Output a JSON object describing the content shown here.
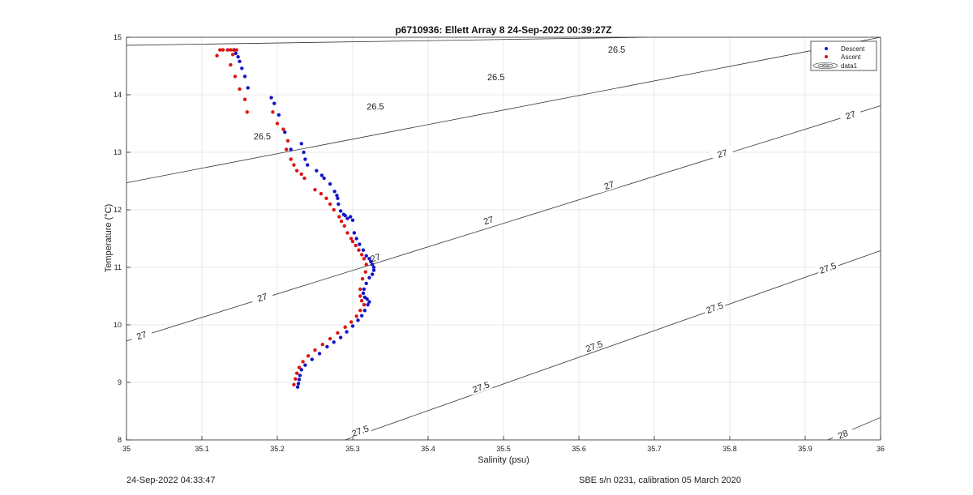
{
  "chart_data": {
    "type": "scatter",
    "title": "p6710936: Ellett Array 8 24-Sep-2022 00:39:27Z",
    "xlabel": "Salinity (psu)",
    "ylabel": "Temperature (°C)",
    "xlim": [
      35,
      36
    ],
    "ylim": [
      8,
      15
    ],
    "xticks": [
      "35",
      "35.1",
      "35.2",
      "35.3",
      "35.4",
      "35.5",
      "35.6",
      "35.7",
      "35.8",
      "35.9",
      "36"
    ],
    "yticks": [
      "8",
      "9",
      "10",
      "11",
      "12",
      "13",
      "14",
      "15"
    ],
    "grid": true,
    "legend_position": "top-right",
    "legend": [
      "Descent",
      "Ascent",
      "data1"
    ],
    "colors": {
      "descent": "#1414c8",
      "ascent": "#dc1414",
      "contour": "#333333",
      "grid": "#e3e3e3"
    },
    "contours": [
      {
        "label": "26.5",
        "points": [
          [
            35.0,
            14.86
          ],
          [
            35.69,
            15.0
          ]
        ]
      },
      {
        "label": "26.5",
        "points": [
          [
            35.0,
            12.47
          ],
          [
            36.0,
            15.0
          ]
        ]
      },
      {
        "label": "27",
        "points": [
          [
            35.0,
            9.72
          ],
          [
            36.0,
            13.81
          ]
        ]
      },
      {
        "label": "27.5",
        "points": [
          [
            35.29,
            8.0
          ],
          [
            36.0,
            11.29
          ]
        ]
      },
      {
        "label": "28",
        "points": [
          [
            35.93,
            8.0
          ],
          [
            36.0,
            8.39
          ]
        ]
      }
    ],
    "contour_labels": [
      {
        "text": "26.5",
        "x": 35.65,
        "y": 14.79
      },
      {
        "text": "26.5",
        "x": 35.49,
        "y": 14.31
      },
      {
        "text": "26.5",
        "x": 35.33,
        "y": 13.8
      },
      {
        "text": "26.5",
        "x": 35.18,
        "y": 13.28
      },
      {
        "text": "27",
        "x": 35.96,
        "y": 13.65
      },
      {
        "text": "27",
        "x": 35.79,
        "y": 12.98
      },
      {
        "text": "27",
        "x": 35.64,
        "y": 12.43
      },
      {
        "text": "27",
        "x": 35.48,
        "y": 11.82
      },
      {
        "text": "27",
        "x": 35.33,
        "y": 11.17
      },
      {
        "text": "27",
        "x": 35.18,
        "y": 10.48
      },
      {
        "text": "27",
        "x": 35.02,
        "y": 9.82
      },
      {
        "text": "27.5",
        "x": 35.93,
        "y": 10.99
      },
      {
        "text": "27.5",
        "x": 35.78,
        "y": 10.3
      },
      {
        "text": "27.5",
        "x": 35.62,
        "y": 9.63
      },
      {
        "text": "27.5",
        "x": 35.47,
        "y": 8.92
      },
      {
        "text": "27.5",
        "x": 35.31,
        "y": 8.16
      },
      {
        "text": "28",
        "x": 35.95,
        "y": 8.1
      }
    ],
    "series": [
      {
        "name": "Descent",
        "x": [
          35.143,
          35.145,
          35.148,
          35.15,
          35.153,
          35.157,
          35.161,
          35.192,
          35.196,
          35.202,
          35.21,
          35.218,
          35.232,
          35.235,
          35.237,
          35.24,
          35.252,
          35.259,
          35.262,
          35.27,
          35.276,
          35.279,
          35.28,
          35.281,
          35.284,
          35.288,
          35.29,
          35.293,
          35.297,
          35.3,
          35.302,
          35.305,
          35.309,
          35.314,
          35.318,
          35.322,
          35.324,
          35.326,
          35.328,
          35.328,
          35.326,
          35.322,
          35.318,
          35.315,
          35.314,
          35.316,
          35.319,
          35.322,
          35.32,
          35.316,
          35.312,
          35.307,
          35.3,
          35.292,
          35.284,
          35.275,
          35.266,
          35.256,
          35.246,
          35.237,
          35.232,
          35.23,
          35.229,
          35.228,
          35.227
        ],
        "y": [
          14.78,
          14.72,
          14.66,
          14.58,
          14.46,
          14.32,
          14.12,
          13.95,
          13.85,
          13.65,
          13.35,
          13.05,
          13.15,
          13.0,
          12.88,
          12.78,
          12.68,
          12.6,
          12.55,
          12.45,
          12.32,
          12.25,
          12.2,
          12.1,
          11.98,
          11.92,
          11.9,
          11.85,
          11.88,
          11.82,
          11.6,
          11.5,
          11.4,
          11.3,
          11.2,
          11.15,
          11.1,
          11.05,
          11.0,
          10.95,
          10.88,
          10.82,
          10.72,
          10.62,
          10.55,
          10.48,
          10.45,
          10.4,
          10.35,
          10.25,
          10.16,
          10.08,
          9.98,
          9.88,
          9.78,
          9.7,
          9.62,
          9.5,
          9.4,
          9.3,
          9.22,
          9.12,
          9.05,
          8.98,
          8.92
        ]
      },
      {
        "name": "Ascent",
        "x": [
          35.12,
          35.124,
          35.128,
          35.134,
          35.138,
          35.142,
          35.146,
          35.141,
          35.138,
          35.144,
          35.15,
          35.157,
          35.16,
          35.194,
          35.2,
          35.208,
          35.214,
          35.212,
          35.218,
          35.222,
          35.226,
          35.232,
          35.236,
          35.25,
          35.258,
          35.265,
          35.27,
          35.275,
          35.282,
          35.285,
          35.289,
          35.293,
          35.298,
          35.3,
          35.304,
          35.308,
          35.312,
          35.315,
          35.318,
          35.317,
          35.313,
          35.31,
          35.31,
          35.312,
          35.315,
          35.31,
          35.305,
          35.298,
          35.29,
          35.28,
          35.27,
          35.26,
          35.25,
          35.241,
          35.234,
          35.229,
          35.226,
          35.224,
          35.222
        ],
        "y": [
          14.68,
          14.78,
          14.78,
          14.78,
          14.78,
          14.78,
          14.78,
          14.7,
          14.52,
          14.32,
          14.1,
          13.92,
          13.7,
          13.7,
          13.5,
          13.4,
          13.2,
          13.05,
          12.88,
          12.78,
          12.68,
          12.62,
          12.55,
          12.35,
          12.28,
          12.2,
          12.1,
          12.0,
          11.88,
          11.8,
          11.72,
          11.6,
          11.5,
          11.45,
          11.38,
          11.3,
          11.22,
          11.15,
          11.05,
          10.92,
          10.8,
          10.62,
          10.5,
          10.42,
          10.35,
          10.25,
          10.15,
          10.05,
          9.96,
          9.86,
          9.76,
          9.66,
          9.56,
          9.46,
          9.36,
          9.26,
          9.16,
          9.06,
          8.96
        ]
      }
    ]
  },
  "footer": {
    "left_text": "24-Sep-2022 04:33:47",
    "right_text": "SBE s/n 0231, calibration 05 March 2020"
  }
}
